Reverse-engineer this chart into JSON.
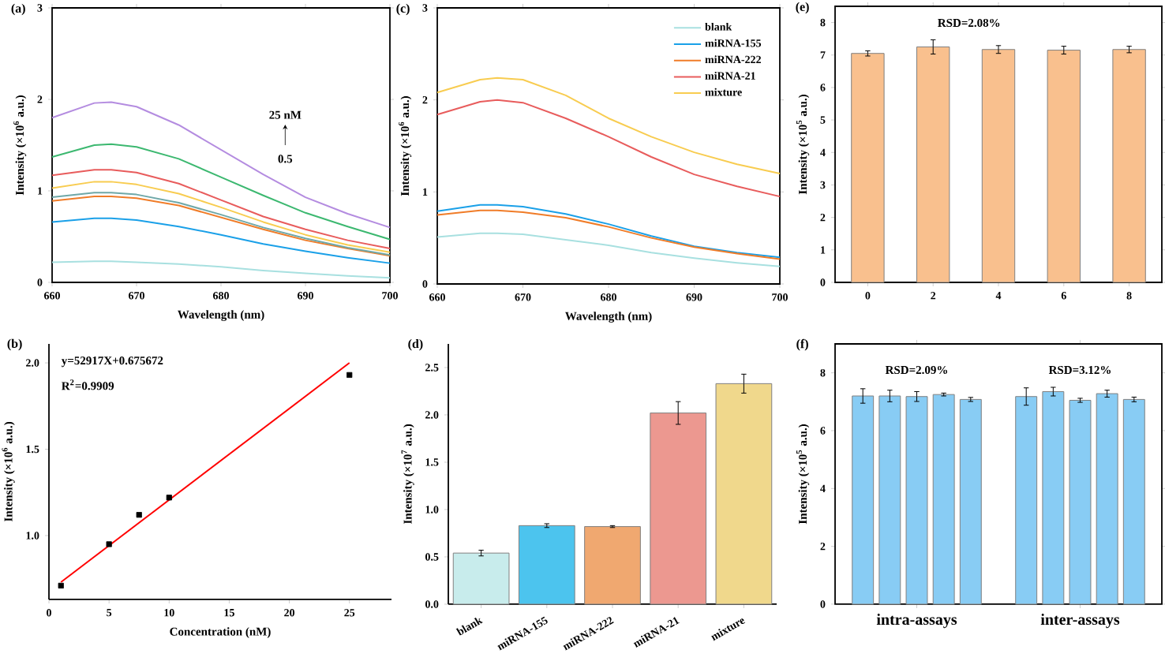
{
  "chart_data": [
    {
      "type": "line",
      "title": "(a)",
      "xlabel": "Wavelength (nm)",
      "ylabel": "Intensity (×10$^{6}$ a.u.)",
      "xlim": [
        660,
        700
      ],
      "ylim": [
        0,
        3
      ],
      "xticks": [
        660,
        670,
        680,
        690,
        700
      ],
      "yticks": [
        0,
        1,
        2,
        3
      ],
      "annotations": [
        "25 nM",
        "0.5"
      ],
      "x": [
        660,
        665,
        667,
        670,
        675,
        680,
        685,
        690,
        695,
        700
      ],
      "series": [
        {
          "color": "#a8e0e0",
          "values": [
            0.22,
            0.23,
            0.23,
            0.22,
            0.2,
            0.17,
            0.13,
            0.1,
            0.07,
            0.05
          ]
        },
        {
          "color": "#1aa0e8",
          "values": [
            0.66,
            0.7,
            0.7,
            0.68,
            0.61,
            0.52,
            0.42,
            0.34,
            0.27,
            0.21
          ]
        },
        {
          "color": "#f07c28",
          "values": [
            0.89,
            0.94,
            0.94,
            0.92,
            0.84,
            0.71,
            0.58,
            0.46,
            0.37,
            0.29
          ]
        },
        {
          "color": "#6fa8a8",
          "values": [
            0.93,
            0.98,
            0.98,
            0.96,
            0.87,
            0.74,
            0.6,
            0.48,
            0.38,
            0.3
          ]
        },
        {
          "color": "#f8cc50",
          "values": [
            1.03,
            1.1,
            1.1,
            1.07,
            0.97,
            0.82,
            0.66,
            0.52,
            0.41,
            0.33
          ]
        },
        {
          "color": "#e85c5c",
          "values": [
            1.17,
            1.23,
            1.23,
            1.2,
            1.08,
            0.9,
            0.72,
            0.58,
            0.46,
            0.37
          ]
        },
        {
          "color": "#3cb870",
          "values": [
            1.37,
            1.5,
            1.51,
            1.48,
            1.35,
            1.15,
            0.95,
            0.76,
            0.61,
            0.47
          ]
        },
        {
          "color": "#b48ce0",
          "values": [
            1.8,
            1.96,
            1.97,
            1.92,
            1.72,
            1.45,
            1.18,
            0.93,
            0.75,
            0.6
          ]
        }
      ]
    },
    {
      "type": "line",
      "title": "(c)",
      "xlabel": "Wavelength (nm)",
      "ylabel": "Intensity (×10$^{6}$ a.u.)",
      "xlim": [
        660,
        700
      ],
      "ylim": [
        0,
        3
      ],
      "xticks": [
        660,
        670,
        680,
        690,
        700
      ],
      "yticks": [
        0,
        1,
        2,
        3
      ],
      "legend": "top right",
      "x": [
        660,
        665,
        667,
        670,
        675,
        680,
        685,
        690,
        695,
        700
      ],
      "series": [
        {
          "name": "blank",
          "color": "#a8e0e0",
          "values": [
            0.51,
            0.55,
            0.55,
            0.54,
            0.48,
            0.42,
            0.34,
            0.28,
            0.23,
            0.19
          ]
        },
        {
          "name": "miRNA-155",
          "color": "#1aa0e8",
          "values": [
            0.79,
            0.86,
            0.86,
            0.84,
            0.76,
            0.65,
            0.52,
            0.41,
            0.34,
            0.29
          ]
        },
        {
          "name": "miRNA-222",
          "color": "#f07c28",
          "values": [
            0.75,
            0.8,
            0.8,
            0.78,
            0.72,
            0.62,
            0.5,
            0.4,
            0.33,
            0.27
          ]
        },
        {
          "name": "miRNA-21",
          "color": "#e85c5c",
          "values": [
            1.84,
            1.98,
            2.0,
            1.97,
            1.8,
            1.6,
            1.38,
            1.19,
            1.06,
            0.95
          ]
        },
        {
          "name": "mixture",
          "color": "#f8cc50",
          "values": [
            2.08,
            2.22,
            2.24,
            2.22,
            2.05,
            1.8,
            1.6,
            1.43,
            1.3,
            1.2
          ]
        }
      ]
    },
    {
      "type": "bar",
      "title": "(e)",
      "ylabel": "Intensity (×10$^{5}$ a.u.)",
      "categories": [
        "0",
        "2",
        "4",
        "6",
        "8"
      ],
      "ylim": [
        0,
        8.5
      ],
      "yticks": [
        0,
        1,
        2,
        3,
        4,
        5,
        6,
        7,
        8
      ],
      "annotations": [
        "RSD=2.08%"
      ],
      "values": [
        7.05,
        7.25,
        7.17,
        7.15,
        7.17
      ],
      "errors": [
        0.08,
        0.22,
        0.12,
        0.12,
        0.1
      ],
      "color": "#f9c08e"
    },
    {
      "type": "scatter",
      "title": "(b)",
      "xlabel": "Concentration (nM)",
      "ylabel": "Intensity (×10$^{6}$ a.u.)",
      "xlim": [
        0,
        28.5
      ],
      "ylim": [
        0.63,
        2.11
      ],
      "xticks": [
        0,
        5,
        10,
        15,
        20,
        25
      ],
      "yticks": [
        {
          "value": 1.0,
          "label": "1.0"
        },
        {
          "value": 1.5,
          "label": "1.5"
        },
        {
          "value": 2.0,
          "label": "2.0"
        }
      ],
      "annotations": [
        "y=52917X+0.675672",
        "R$^{2}$=0.9909"
      ],
      "series": [
        {
          "type": "scatter",
          "marker": "square",
          "color": "#000000",
          "x": [
            1,
            5,
            7.5,
            10,
            25
          ],
          "values": [
            0.71,
            0.95,
            1.12,
            1.22,
            1.93
          ]
        },
        {
          "type": "line",
          "color": "#ff0000",
          "x": [
            1,
            25
          ],
          "values": [
            0.73,
            2.0
          ]
        }
      ]
    },
    {
      "type": "bar",
      "title": "(d)",
      "ylabel": "Intensity (×10$^{7}$ a.u.)",
      "categories": [
        "blank",
        "miRNA-155",
        "miRNA-222",
        "miRNA-21",
        "mixture"
      ],
      "ylim": [
        0,
        2.75
      ],
      "yticks": [
        {
          "value": 0,
          "label": "0.0"
        },
        {
          "value": 0.5,
          "label": "0.5"
        },
        {
          "value": 1.0,
          "label": "1.0"
        },
        {
          "value": 1.5,
          "label": "1.5"
        },
        {
          "value": 2.0,
          "label": "2.0"
        },
        {
          "value": 2.5,
          "label": "2.5"
        }
      ],
      "values": [
        0.54,
        0.83,
        0.82,
        2.02,
        2.33
      ],
      "errors": [
        0.03,
        0.02,
        0.01,
        0.12,
        0.1
      ],
      "colors": [
        "#c8ecec",
        "#4cc4ee",
        "#f0a870",
        "#ec9890",
        "#f0d88c"
      ]
    },
    {
      "type": "bar",
      "title": "(f)",
      "ylabel": "Intensity (×10$^{5}$ a.u.)",
      "categories": [
        "intra-assays",
        "inter-assays"
      ],
      "ylim": [
        0,
        9
      ],
      "yticks": [
        0,
        2,
        4,
        6,
        8
      ],
      "annotations": [
        "RSD=2.09%",
        "RSD=3.12%"
      ],
      "series": [
        {
          "color": "#88ccf4",
          "values": [
            7.2,
            7.18
          ],
          "errors": [
            0.25,
            0.3
          ]
        },
        {
          "color": "#88ccf4",
          "values": [
            7.2,
            7.35
          ],
          "errors": [
            0.2,
            0.15
          ]
        },
        {
          "color": "#88ccf4",
          "values": [
            7.18,
            7.05
          ],
          "errors": [
            0.17,
            0.07
          ]
        },
        {
          "color": "#88ccf4",
          "values": [
            7.25,
            7.28
          ],
          "errors": [
            0.05,
            0.12
          ]
        },
        {
          "color": "#88ccf4",
          "values": [
            7.08,
            7.08
          ],
          "errors": [
            0.07,
            0.08
          ]
        }
      ]
    }
  ]
}
